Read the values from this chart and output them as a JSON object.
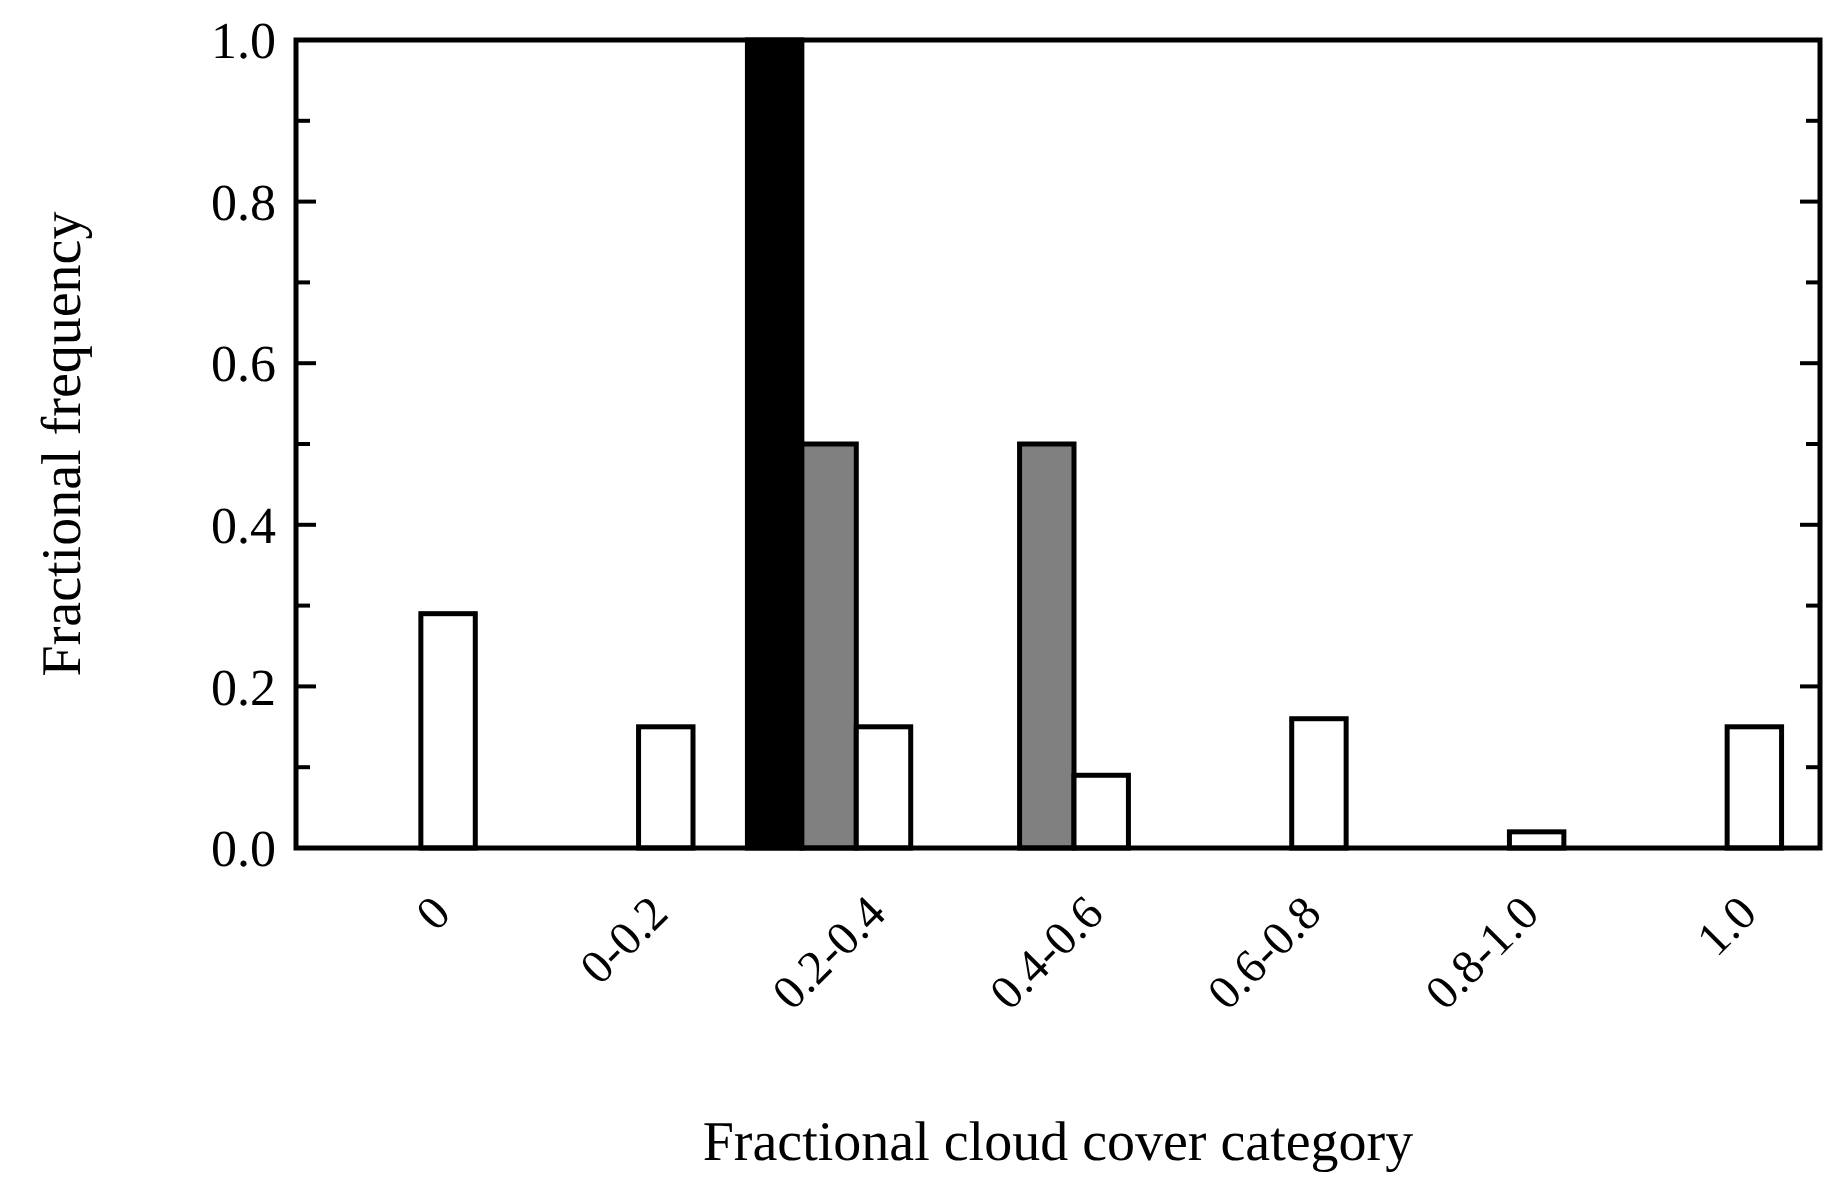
{
  "chart_data": {
    "type": "bar",
    "xlabel": "Fractional cloud cover category",
    "ylabel": "Fractional frequency",
    "categories": [
      "0",
      "0-0.2",
      "0.2-0.4",
      "0.4-0.6",
      "0.6-0.8",
      "0.8-1.0",
      "1.0"
    ],
    "series": [
      {
        "color": "#000000",
        "values": [
          0,
          0,
          1.0,
          0,
          0,
          0,
          0
        ]
      },
      {
        "color": "#808080",
        "values": [
          0,
          0,
          0.5,
          0.5,
          0,
          0,
          0
        ]
      },
      {
        "color": "#ffffff",
        "values": [
          0.29,
          0.15,
          0.15,
          0.09,
          0.16,
          0.02,
          0.15
        ]
      }
    ],
    "ylim": [
      0,
      1.0
    ],
    "yticks": [
      {
        "value": 0,
        "label": "0.0"
      },
      {
        "value": 0.1,
        "label": null
      },
      {
        "value": 0.2,
        "label": "0.2"
      },
      {
        "value": 0.3,
        "label": null
      },
      {
        "value": 0.4,
        "label": "0.4"
      },
      {
        "value": 0.5,
        "label": null
      },
      {
        "value": 0.6,
        "label": "0.6"
      },
      {
        "value": 0.7,
        "label": null
      },
      {
        "value": 0.8,
        "label": "0.8"
      },
      {
        "value": 0.9,
        "label": null
      },
      {
        "value": 1.0,
        "label": "1.0"
      }
    ],
    "grid": false
  }
}
